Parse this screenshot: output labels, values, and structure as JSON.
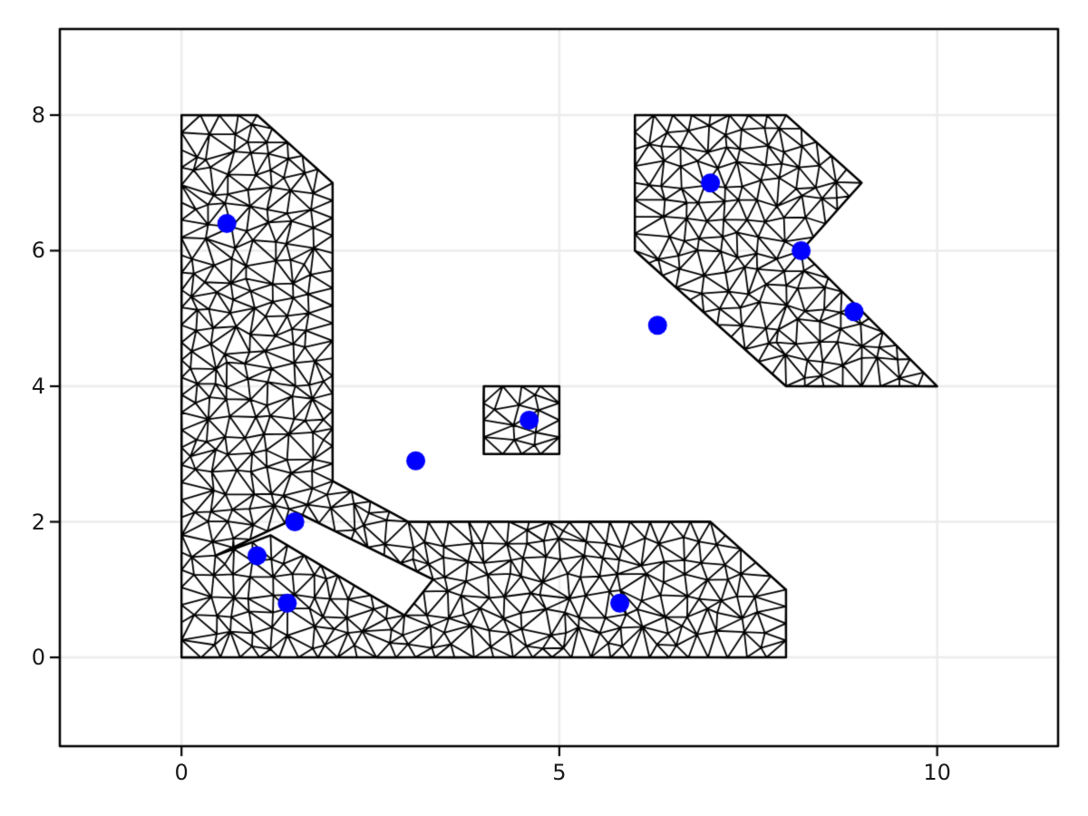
{
  "figure": {
    "background": "#ffffff"
  },
  "chart_data": {
    "type": "scatter",
    "title": "",
    "xlabel": "",
    "ylabel": "",
    "grid": true,
    "grid_color": "#ececec",
    "frame_color": "#000000",
    "tick_label_color": "#1a1a1a",
    "xlim": [
      -1.61,
      11.6
    ],
    "ylim": [
      -1.31,
      9.27
    ],
    "x_ticks": [
      {
        "value": 0,
        "label": "0"
      },
      {
        "value": 5,
        "label": "5"
      },
      {
        "value": 10,
        "label": "10"
      }
    ],
    "y_ticks": [
      {
        "value": 0,
        "label": "0"
      },
      {
        "value": 2,
        "label": "2"
      },
      {
        "value": 4,
        "label": "4"
      },
      {
        "value": 6,
        "label": "6"
      },
      {
        "value": 8,
        "label": "8"
      }
    ],
    "scatter_points": [
      [
        0.6,
        6.4
      ],
      [
        1.0,
        1.5
      ],
      [
        1.5,
        2.0
      ],
      [
        1.4,
        0.8
      ],
      [
        3.1,
        2.9
      ],
      [
        4.6,
        3.5
      ],
      [
        5.8,
        0.8
      ],
      [
        6.3,
        4.9
      ],
      [
        7.0,
        7.0
      ],
      [
        8.2,
        6.0
      ],
      [
        8.9,
        5.1
      ]
    ],
    "marker_color": "#0000ff",
    "marker_radius_px": 10.5,
    "mesh_color": "#000000",
    "mesh_spacing": 0.26,
    "seed": 7,
    "mesh_regions": [
      {
        "name": "l-shaped-domain-with-hole",
        "outer": [
          [
            0,
            0
          ],
          [
            8,
            0
          ],
          [
            8,
            1
          ],
          [
            7,
            2
          ],
          [
            3,
            2
          ],
          [
            2,
            2.6
          ],
          [
            2,
            7
          ],
          [
            1,
            8
          ],
          [
            0,
            8
          ]
        ],
        "holes": [
          [
            [
              0.45,
              1.5
            ],
            [
              1.6,
              2.1
            ],
            [
              3.33,
              1.15
            ],
            [
              2.95,
              0.62
            ],
            [
              1.18,
              1.8
            ]
          ]
        ]
      },
      {
        "name": "small-square",
        "outer": [
          [
            4,
            3
          ],
          [
            5,
            3
          ],
          [
            5,
            4
          ],
          [
            4,
            4
          ]
        ],
        "holes": []
      },
      {
        "name": "chevron-arrow",
        "outer": [
          [
            6,
            8
          ],
          [
            8,
            8
          ],
          [
            9,
            7
          ],
          [
            8.2,
            6
          ],
          [
            10,
            4
          ],
          [
            8,
            4
          ],
          [
            6,
            6
          ]
        ],
        "holes": []
      }
    ]
  }
}
